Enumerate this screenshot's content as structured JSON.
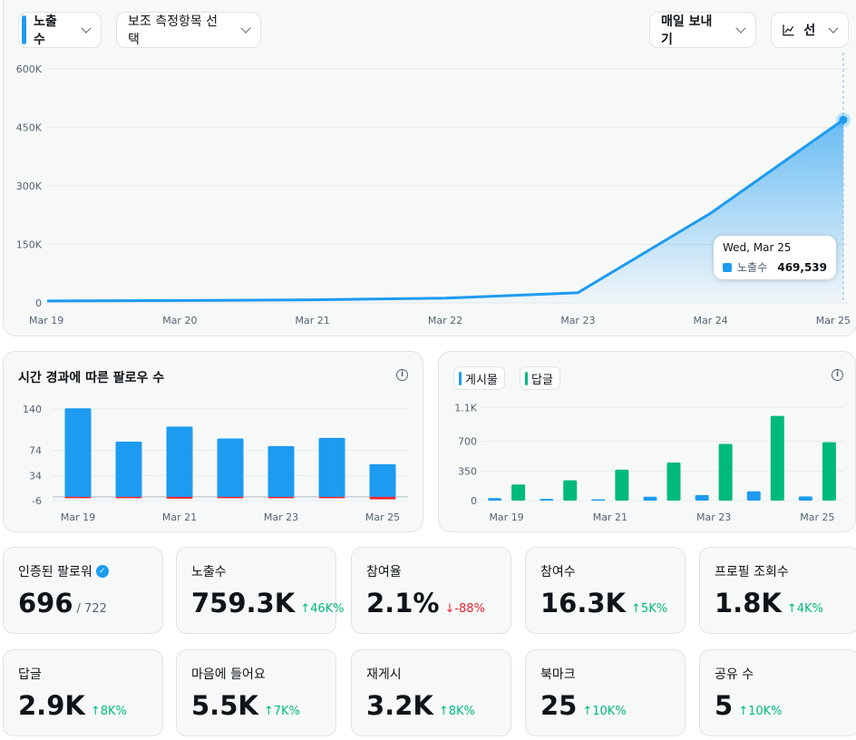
{
  "controls": {
    "metric_label": "노출수",
    "secondary_label": "보조 측정항목 선택",
    "export_label": "매일 보내기",
    "chart_type_label": "선"
  },
  "tooltip": {
    "date": "Wed, Mar 25",
    "name": "노출수",
    "value": "469,539"
  },
  "charts": {
    "followers_title": "시간 경과에 따른 팔로우 수",
    "legend_posts": "게시물",
    "legend_replies": "답글"
  },
  "chart_data": [
    {
      "type": "area",
      "categories": [
        "Mar 19",
        "Mar 20",
        "Mar 21",
        "Mar 22",
        "Mar 23",
        "Mar 24",
        "Mar 25"
      ],
      "series": [
        {
          "name": "노출수",
          "values": [
            5000,
            6000,
            8000,
            12000,
            26000,
            230000,
            469539
          ]
        }
      ],
      "yticks": [
        "0",
        "150K",
        "300K",
        "450K",
        "600K"
      ],
      "ylim": [
        0,
        600000
      ],
      "color": "#1d9bf0"
    },
    {
      "type": "bar",
      "title": "시간 경과에 따른 팔로우 수",
      "categories": [
        "Mar 19",
        "Mar 20",
        "Mar 21",
        "Mar 22",
        "Mar 23",
        "Mar 24",
        "Mar 25"
      ],
      "xticks": [
        "Mar 19",
        "Mar 21",
        "Mar 23",
        "Mar 25"
      ],
      "series": [
        {
          "values": [
            141,
            88,
            112,
            93,
            81,
            94,
            52
          ],
          "color": "#1d9bf0"
        },
        {
          "values": [
            -1,
            -1,
            -3,
            -1,
            -1,
            -1,
            -4
          ],
          "color": "#f4212e"
        }
      ],
      "yticks": [
        "-6",
        "34",
        "74",
        "140"
      ],
      "ylim": [
        -6,
        140
      ]
    },
    {
      "type": "bar",
      "categories": [
        "Mar 19",
        "Mar 20",
        "Mar 21",
        "Mar 22",
        "Mar 23",
        "Mar 24",
        "Mar 25"
      ],
      "xticks": [
        "Mar 19",
        "Mar 21",
        "Mar 23",
        "Mar 25"
      ],
      "series": [
        {
          "name": "게시물",
          "values": [
            30,
            20,
            15,
            45,
            65,
            110,
            50
          ],
          "color": "#1d9bf0"
        },
        {
          "name": "답글",
          "values": [
            190,
            240,
            365,
            450,
            670,
            1000,
            690
          ],
          "color": "#00ba7c"
        }
      ],
      "yticks": [
        "0",
        "350",
        "700",
        "1.1K"
      ],
      "ylim": [
        0,
        1050
      ]
    }
  ],
  "stats": [
    {
      "label": "인증된 팔로워",
      "value": "696",
      "extra": "/ 722",
      "verified": true
    },
    {
      "label": "노출수",
      "value": "759.3K",
      "delta": "↑46K%",
      "dir": "up"
    },
    {
      "label": "참여율",
      "value": "2.1%",
      "delta": "↓-88%",
      "dir": "down"
    },
    {
      "label": "참여수",
      "value": "16.3K",
      "delta": "↑5K%",
      "dir": "up"
    },
    {
      "label": "프로필 조회수",
      "value": "1.8K",
      "delta": "↑4K%",
      "dir": "up"
    },
    {
      "label": "답글",
      "value": "2.9K",
      "delta": "↑8K%",
      "dir": "up"
    },
    {
      "label": "마음에 들어요",
      "value": "5.5K",
      "delta": "↑7K%",
      "dir": "up"
    },
    {
      "label": "재게시",
      "value": "3.2K",
      "delta": "↑8K%",
      "dir": "up"
    },
    {
      "label": "북마크",
      "value": "25",
      "delta": "↑10K%",
      "dir": "up"
    },
    {
      "label": "공유 수",
      "value": "5",
      "delta": "↑10K%",
      "dir": "up"
    }
  ]
}
